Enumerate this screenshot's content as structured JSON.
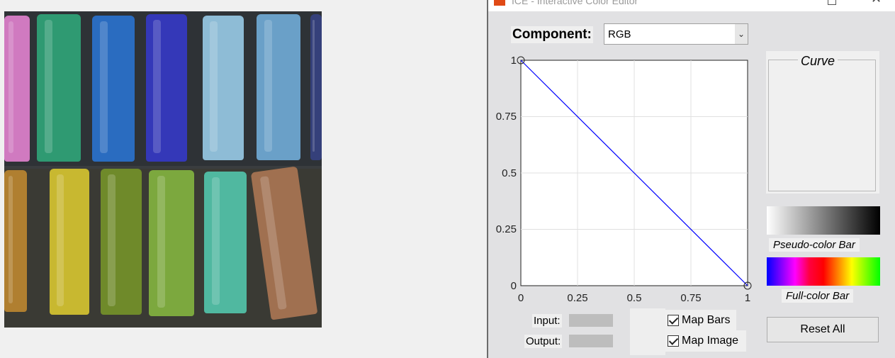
{
  "photo": {
    "description_icon": "pastel-crayons-image",
    "top_row_colors": [
      "#d07ac0",
      "#2f9a72",
      "#2a6cc0",
      "#3438b8",
      "#8ebcd6",
      "#6aa0c8"
    ],
    "bottom_row_colors": [
      "#b07f30",
      "#c8b830",
      "#6f8a2a",
      "#7ca83e",
      "#50b8a0",
      "#a07050"
    ]
  },
  "ice_window": {
    "title": "ICE - Interactive Color Editor",
    "component_label": "Component:",
    "component_value": "RGB",
    "plot": {
      "x_ticks": [
        "0",
        "0.25",
        "0.5",
        "0.75",
        "1"
      ],
      "y_ticks": [
        "0",
        "0.25",
        "0.5",
        "0.75",
        "1"
      ]
    },
    "curve_title": "Curve",
    "pseudo_color_label": "Pseudo-color Bar",
    "full_color_label": "Full-color Bar",
    "input_label": "Input:",
    "output_label": "Output:",
    "map_bars_label": "Map Bars",
    "map_image_label": "Map Image",
    "reset_label": "Reset All",
    "curve_color": "#0000ff"
  }
}
